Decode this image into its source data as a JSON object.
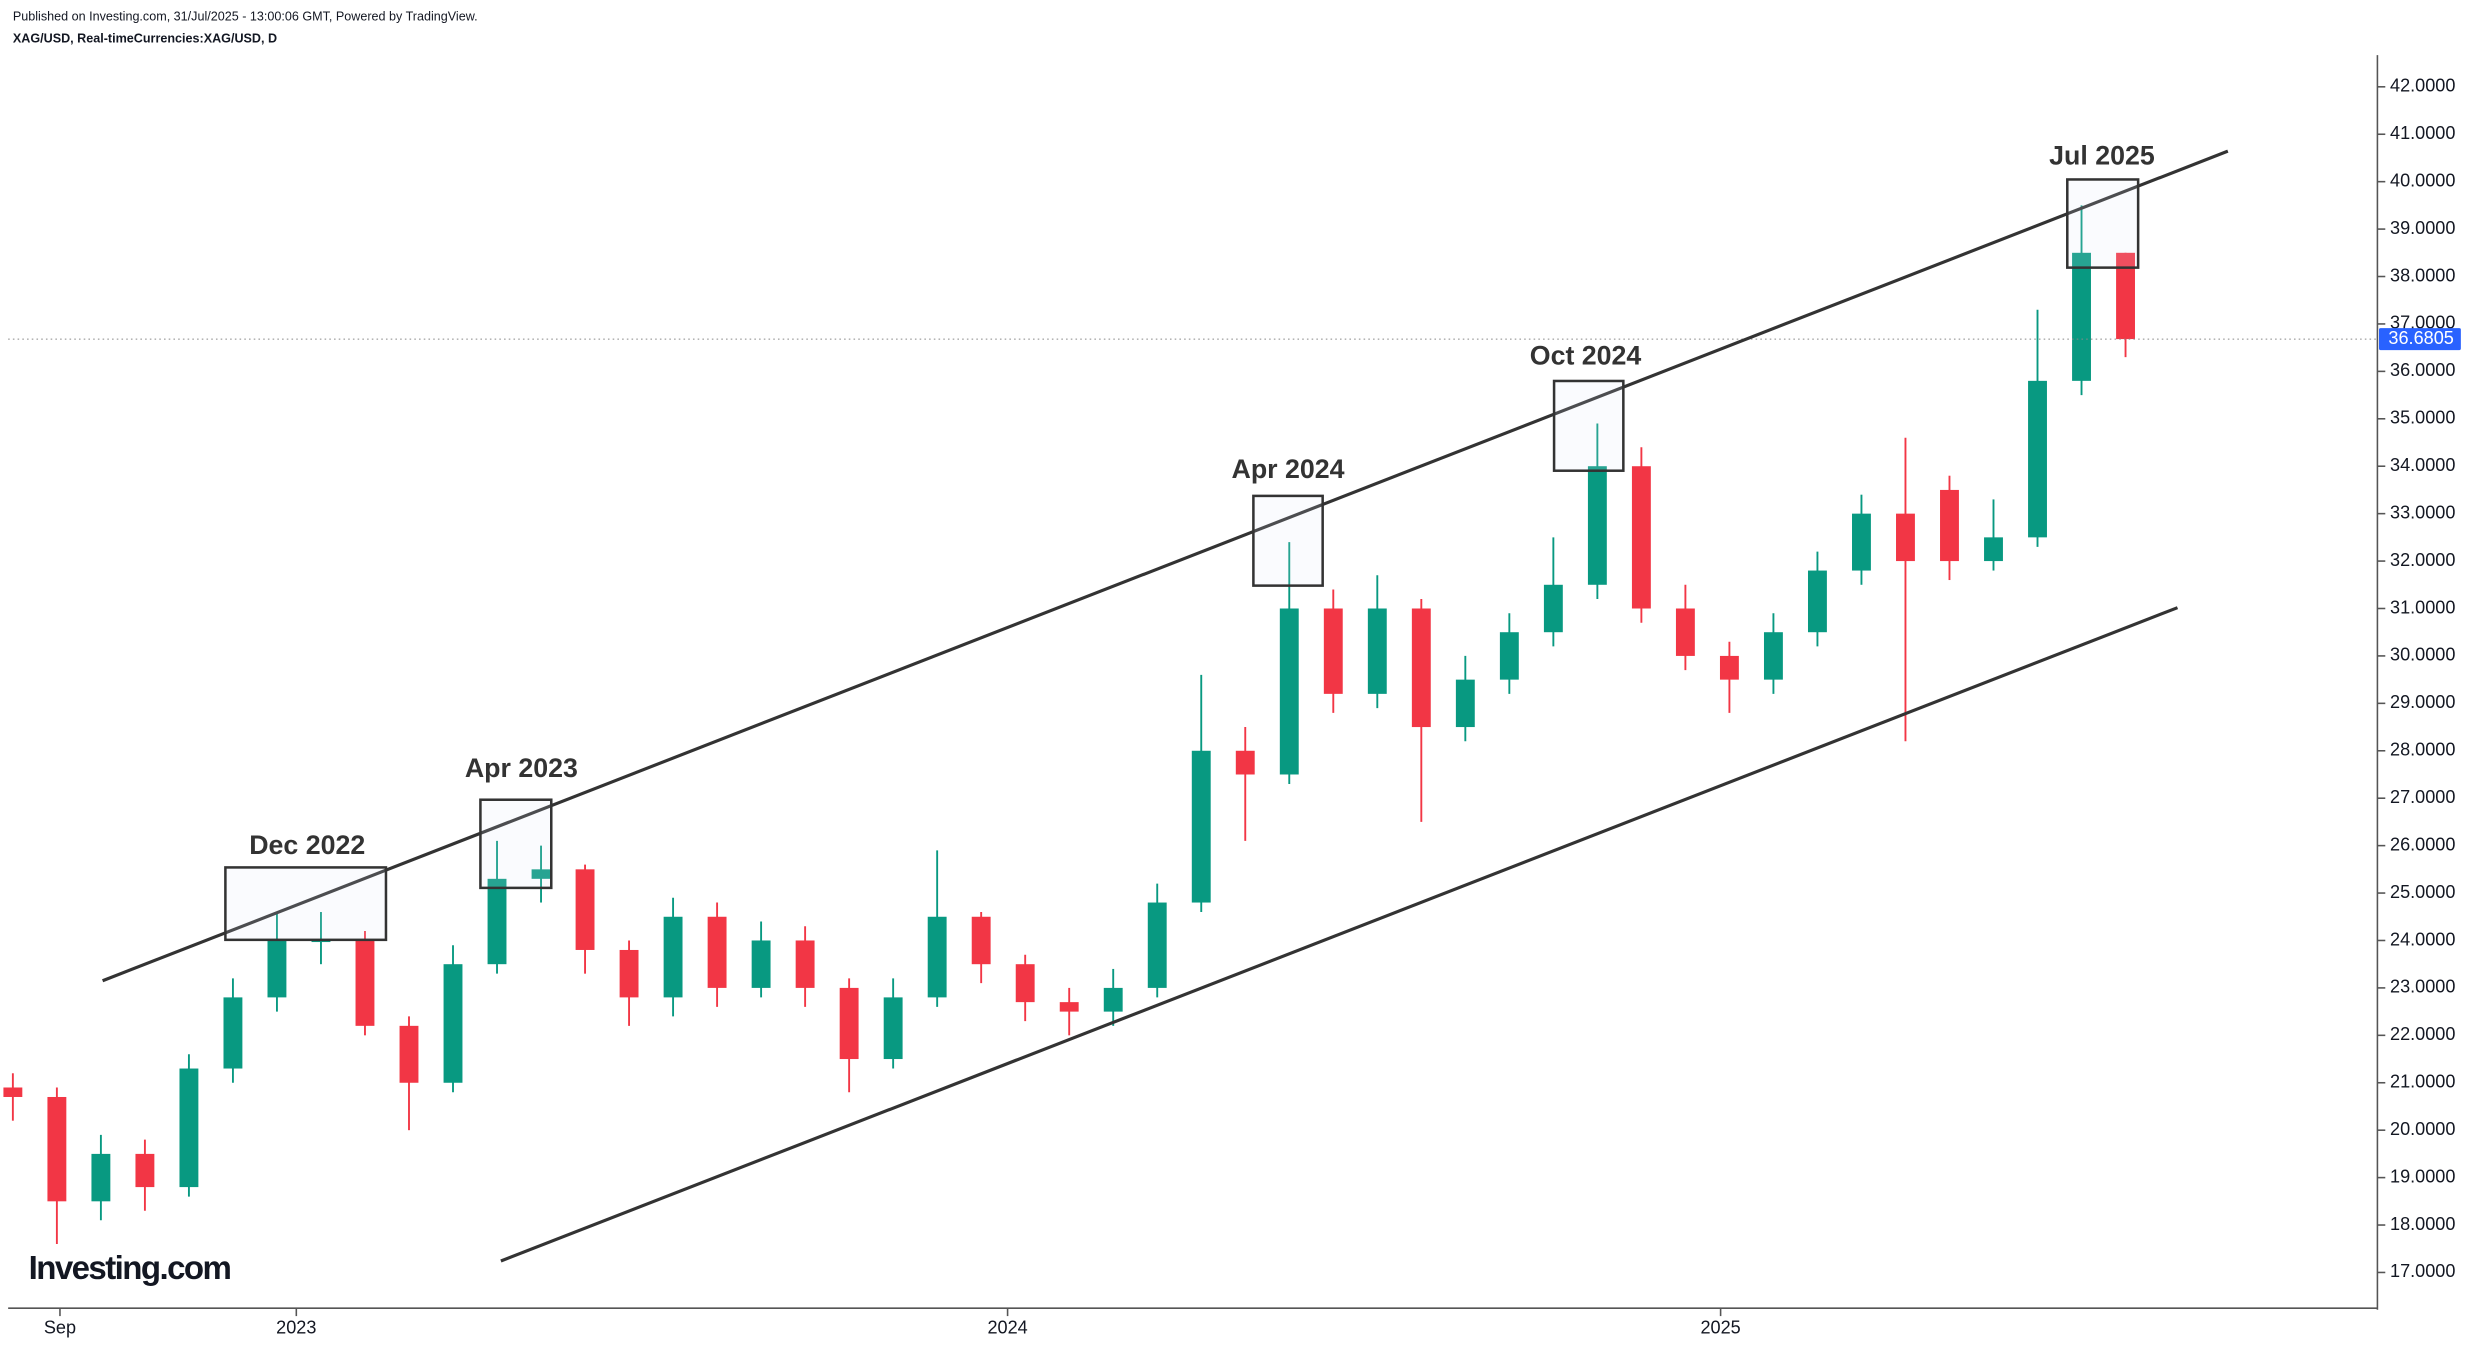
{
  "header": {
    "published": "Published on Investing.com, 31/Jul/2025 - 13:00:06 GMT, Powered by TradingView.",
    "symbol": "XAG/USD, Real-timeCurrencies:XAG/USD, D"
  },
  "watermark": "Investing.com",
  "chart_data": {
    "type": "candlestick",
    "categories": [
      null,
      null,
      null,
      null,
      null,
      null,
      null,
      null,
      null,
      null,
      null,
      null,
      null,
      null,
      null,
      null,
      null,
      null,
      null,
      null,
      null,
      null,
      null,
      null,
      null,
      null,
      null,
      null,
      null,
      null,
      null,
      null,
      null,
      null,
      null,
      null,
      null,
      null,
      null,
      null,
      null,
      null,
      null,
      null,
      null,
      null,
      null,
      null,
      null
    ],
    "open": [
      20.9,
      20.7,
      18.5,
      19.5,
      18.8,
      21.3,
      22.8,
      24.0,
      24.0,
      22.2,
      21.0,
      23.5,
      25.3,
      25.5,
      23.8,
      22.8,
      24.5,
      23.0,
      24.0,
      23.0,
      21.5,
      22.8,
      24.5,
      23.5,
      22.7,
      22.5,
      23.0,
      24.8,
      28.0,
      27.5,
      31.0,
      29.2,
      31.0,
      28.5,
      29.5,
      30.5,
      31.5,
      34.0,
      31.0,
      30.0,
      29.5,
      30.5,
      31.8,
      33.0,
      33.5,
      32.0,
      32.5,
      35.8,
      38.5
    ],
    "high": [
      21.2,
      20.9,
      19.9,
      19.8,
      21.6,
      23.2,
      24.6,
      24.6,
      24.2,
      22.4,
      23.9,
      26.1,
      26.0,
      25.6,
      24.0,
      24.9,
      24.8,
      24.4,
      24.3,
      23.2,
      23.2,
      25.9,
      24.6,
      23.7,
      23.0,
      23.4,
      25.2,
      29.6,
      28.5,
      32.4,
      31.4,
      31.7,
      31.2,
      30.0,
      30.9,
      32.5,
      34.9,
      34.4,
      31.5,
      30.3,
      30.9,
      32.2,
      33.4,
      34.6,
      33.8,
      33.3,
      37.3,
      39.5,
      38.5
    ],
    "low": [
      20.2,
      17.6,
      18.1,
      18.3,
      18.6,
      21.0,
      22.5,
      23.5,
      22.0,
      20.0,
      20.8,
      23.3,
      24.8,
      23.3,
      22.2,
      22.4,
      22.6,
      22.8,
      22.6,
      20.8,
      21.3,
      22.6,
      23.1,
      22.3,
      22.0,
      22.2,
      22.8,
      24.6,
      26.1,
      27.3,
      28.8,
      28.9,
      26.5,
      28.2,
      29.2,
      30.2,
      31.2,
      30.7,
      29.7,
      28.8,
      29.2,
      30.2,
      31.5,
      28.2,
      31.6,
      31.8,
      32.3,
      35.5,
      36.3
    ],
    "close": [
      20.7,
      18.5,
      19.5,
      18.8,
      21.3,
      22.8,
      24.0,
      24.0,
      22.2,
      21.0,
      23.5,
      25.3,
      25.5,
      23.8,
      22.8,
      24.5,
      23.0,
      24.0,
      23.0,
      21.5,
      22.8,
      24.5,
      23.5,
      22.7,
      22.5,
      23.0,
      24.8,
      28.0,
      27.5,
      31.0,
      29.2,
      31.0,
      28.5,
      29.5,
      30.5,
      31.5,
      34.0,
      31.0,
      30.0,
      29.5,
      30.5,
      31.8,
      33.0,
      32.0,
      32.0,
      32.5,
      35.8,
      38.5,
      36.6805
    ],
    "up_color": "#089981",
    "down_color": "#f23645",
    "last_price": 36.6805,
    "last_price_color": "#2962ff",
    "ylim": [
      16.4,
      42.2
    ],
    "yticks": [
      {
        "value": 17,
        "label": "17.0000"
      },
      {
        "value": 18,
        "label": "18.0000"
      },
      {
        "value": 19,
        "label": "19.0000"
      },
      {
        "value": 20,
        "label": "20.0000"
      },
      {
        "value": 21,
        "label": "21.0000"
      },
      {
        "value": 22,
        "label": "22.0000"
      },
      {
        "value": 23,
        "label": "23.0000"
      },
      {
        "value": 24,
        "label": "24.0000"
      },
      {
        "value": 25,
        "label": "25.0000"
      },
      {
        "value": 26,
        "label": "26.0000"
      },
      {
        "value": 27,
        "label": "27.0000"
      },
      {
        "value": 28,
        "label": "28.0000"
      },
      {
        "value": 29,
        "label": "29.0000"
      },
      {
        "value": 30,
        "label": "30.0000"
      },
      {
        "value": 31,
        "label": "31.0000"
      },
      {
        "value": 32,
        "label": "32.0000"
      },
      {
        "value": 33,
        "label": "33.0000"
      },
      {
        "value": 34,
        "label": "34.0000"
      },
      {
        "value": 35,
        "label": "35.0000"
      },
      {
        "value": 36,
        "label": "36.0000"
      },
      {
        "value": 37,
        "label": "37.0000"
      },
      {
        "value": 38,
        "label": "38.0000"
      },
      {
        "value": 39,
        "label": "39.0000"
      },
      {
        "value": 40,
        "label": "40.0000"
      },
      {
        "value": 41,
        "label": "41.0000"
      },
      {
        "value": 42,
        "label": "42.0000"
      }
    ],
    "xticks": [
      {
        "value": 1.07,
        "label": "Sep"
      },
      {
        "value": 6.44,
        "label": "2023"
      },
      {
        "value": 22.6,
        "label": "2024"
      },
      {
        "value": 38.8,
        "label": "2025"
      }
    ],
    "annotations": [
      "Dec 2022",
      "Apr 2023",
      "Apr 2024",
      "Oct 2024",
      "Jul 2025"
    ]
  }
}
